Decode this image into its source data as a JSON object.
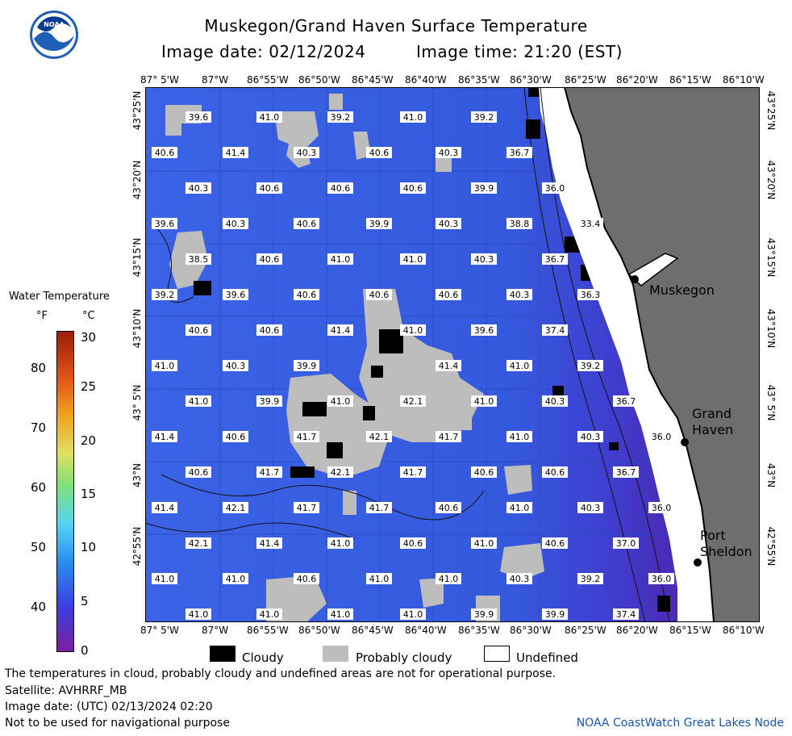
{
  "header": {
    "title": "Muskegon/Grand Haven Surface Temperature",
    "image_date": "Image date: 02/12/2024",
    "image_time": "Image time: 21:20 (EST)",
    "logo_text": "NOAA"
  },
  "axes": {
    "lon_labels": [
      "87° 5'W",
      "87°W",
      "86°55'W",
      "86°50'W",
      "86°45'W",
      "86°40'W",
      "86°35'W",
      "86°30'W",
      "86°25'W",
      "86°20'W",
      "86°15'W",
      "86°10'W"
    ],
    "lat_labels": [
      "43°25'N",
      "43°20'N",
      "43°15'N",
      "43°10'N",
      "43° 5'N",
      "43°N",
      "42°55'N"
    ]
  },
  "colorbar": {
    "title": "Water Temperature",
    "unit_f": "°F",
    "unit_c": "°C",
    "f_ticks": [
      {
        "label": "80",
        "f": 80
      },
      {
        "label": "70",
        "f": 70
      },
      {
        "label": "60",
        "f": 60
      },
      {
        "label": "50",
        "f": 50
      },
      {
        "label": "40",
        "f": 40
      }
    ],
    "c_ticks": [
      {
        "label": "30",
        "c": 30
      },
      {
        "label": "25",
        "c": 25
      },
      {
        "label": "20",
        "c": 20
      },
      {
        "label": "15",
        "c": 15
      },
      {
        "label": "10",
        "c": 10
      },
      {
        "label": "5",
        "c": 5
      },
      {
        "label": "0",
        "c": 0
      }
    ]
  },
  "cities": [
    {
      "name": "Muskegon"
    },
    {
      "name": "Grand Haven"
    },
    {
      "name": "Port Sheldon"
    }
  ],
  "legend": {
    "cloudy": "Cloudy",
    "probably_cloudy": "Probably cloudy",
    "undefined": "Undefined"
  },
  "footer": {
    "line1": "The temperatures in cloud, probably cloudy and undefined areas are not for operational purpose.",
    "line2": "Satellite: AVHRRF_MB",
    "line3": "Image date: (UTC) 02/13/2024  02:20",
    "line4": "Not to be used for navigational purpose",
    "credit": "NOAA CoastWatch Great Lakes Node"
  },
  "colors": {
    "water": "#3b5fe0",
    "cloudy": "#000000",
    "probably_cloudy": "#bdbdbd",
    "land": "#6e6e6e",
    "undefined": "#ffffff"
  },
  "temperature_rows": [
    [
      "39.6",
      "41.0",
      "39.2",
      "41.0",
      "39.2"
    ],
    [
      "40.6",
      "41.4",
      "40.3",
      "40.6",
      "40.3",
      "36.7"
    ],
    [
      "40.3",
      "40.6",
      "40.6",
      "40.6",
      "39.9",
      "36.0"
    ],
    [
      "39.6",
      "40.3",
      "40.6",
      "39.9",
      "40.3",
      "38.8",
      "33.4"
    ],
    [
      "38.5",
      "40.6",
      "41.0",
      "41.0",
      "40.3",
      "36.7"
    ],
    [
      "39.2",
      "39.6",
      "40.6",
      "40.6",
      "40.6",
      "40.3",
      "36.3"
    ],
    [
      "40.6",
      "40.6",
      "41.4",
      "41.0",
      "39.6",
      "37.4"
    ],
    [
      "41.0",
      "40.3",
      "39.9",
      "41.4",
      "41.0",
      "39.2"
    ],
    [
      "41.0",
      "39.9",
      "41.0",
      "42.1",
      "41.0",
      "40.3",
      "36.7"
    ],
    [
      "41.4",
      "40.6",
      "41.7",
      "42.1",
      "41.7",
      "41.0",
      "40.3",
      "36.0"
    ],
    [
      "40.6",
      "41.7",
      "42.1",
      "41.7",
      "40.6",
      "40.6",
      "36.7"
    ],
    [
      "41.4",
      "42.1",
      "41.7",
      "41.7",
      "40.6",
      "41.0",
      "40.3",
      "36.0"
    ],
    [
      "42.1",
      "41.4",
      "41.0",
      "40.6",
      "41.0",
      "40.6",
      "37.0"
    ],
    [
      "41.0",
      "41.0",
      "40.6",
      "41.0",
      "41.0",
      "40.3",
      "39.2",
      "36.0"
    ],
    [
      "41.0",
      "41.0",
      "41.0",
      "41.0",
      "39.9",
      "39.9",
      "37.4"
    ]
  ]
}
